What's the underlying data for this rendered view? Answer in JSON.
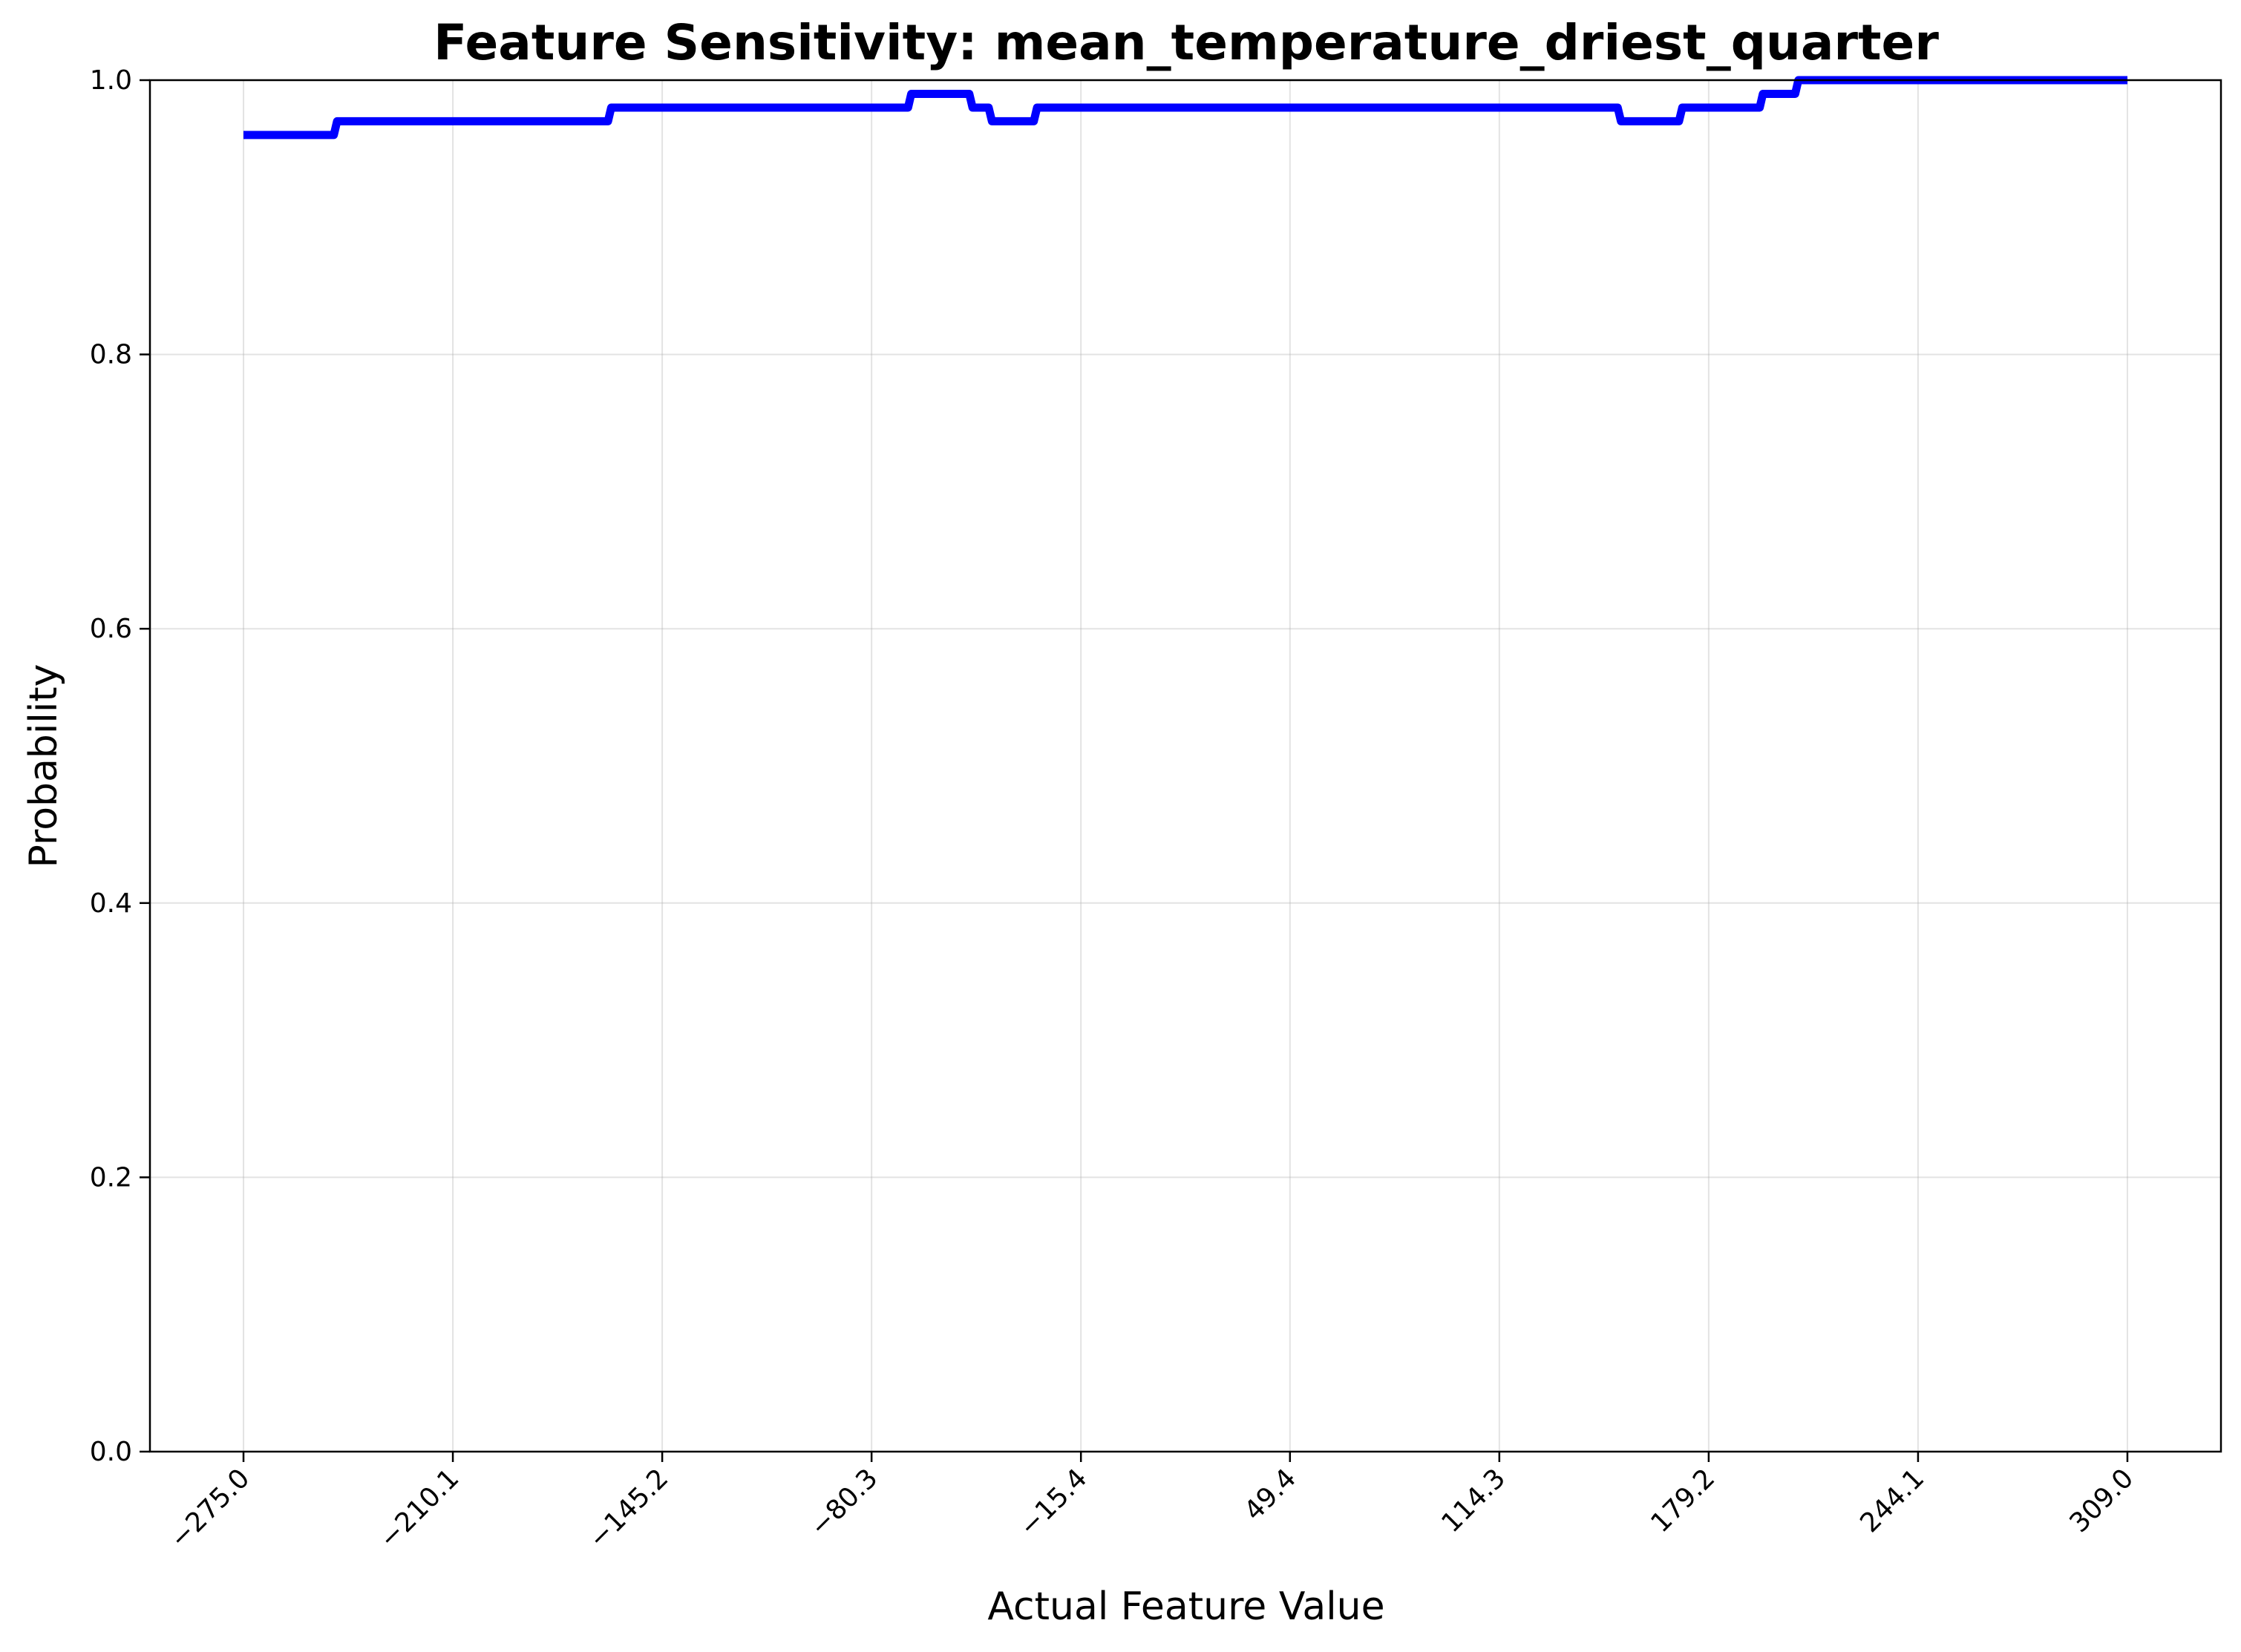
{
  "chart_data": {
    "type": "line",
    "title": "Feature Sensitivity: mean_temperature_driest_quarter",
    "xlabel": "Actual Feature Value",
    "ylabel": "Probability",
    "xlim": [
      -304,
      338
    ],
    "ylim": [
      0.0,
      1.0
    ],
    "x_ticks": [
      -275.0,
      -210.1,
      -145.2,
      -80.3,
      -15.4,
      49.4,
      114.3,
      179.2,
      244.1,
      309.0
    ],
    "x_tick_labels": [
      "−275.0",
      "−210.1",
      "−145.2",
      "−80.3",
      "−15.4",
      "49.4",
      "114.3",
      "179.2",
      "244.1",
      "309.0"
    ],
    "y_ticks": [
      0.0,
      0.2,
      0.4,
      0.6,
      0.8,
      1.0
    ],
    "y_tick_labels": [
      "0.0",
      "0.2",
      "0.4",
      "0.6",
      "0.8",
      "1.0"
    ],
    "grid": true,
    "color": "#0000ff",
    "series": [
      {
        "x": [
          -275.0,
          -247.0,
          -246.0,
          -162.0,
          -161.0,
          -69.0,
          -68.0,
          -50.0,
          -49.0,
          -44.0,
          -43.0,
          -30.0,
          -29.0,
          151.0,
          152.0,
          170.0,
          171.0,
          195.0,
          196.0,
          206.0,
          207.0,
          309.0
        ],
        "y": [
          0.96,
          0.96,
          0.97,
          0.97,
          0.98,
          0.98,
          0.99,
          0.99,
          0.98,
          0.98,
          0.97,
          0.97,
          0.98,
          0.98,
          0.97,
          0.97,
          0.98,
          0.98,
          0.99,
          0.99,
          1.0,
          1.0
        ]
      }
    ]
  }
}
